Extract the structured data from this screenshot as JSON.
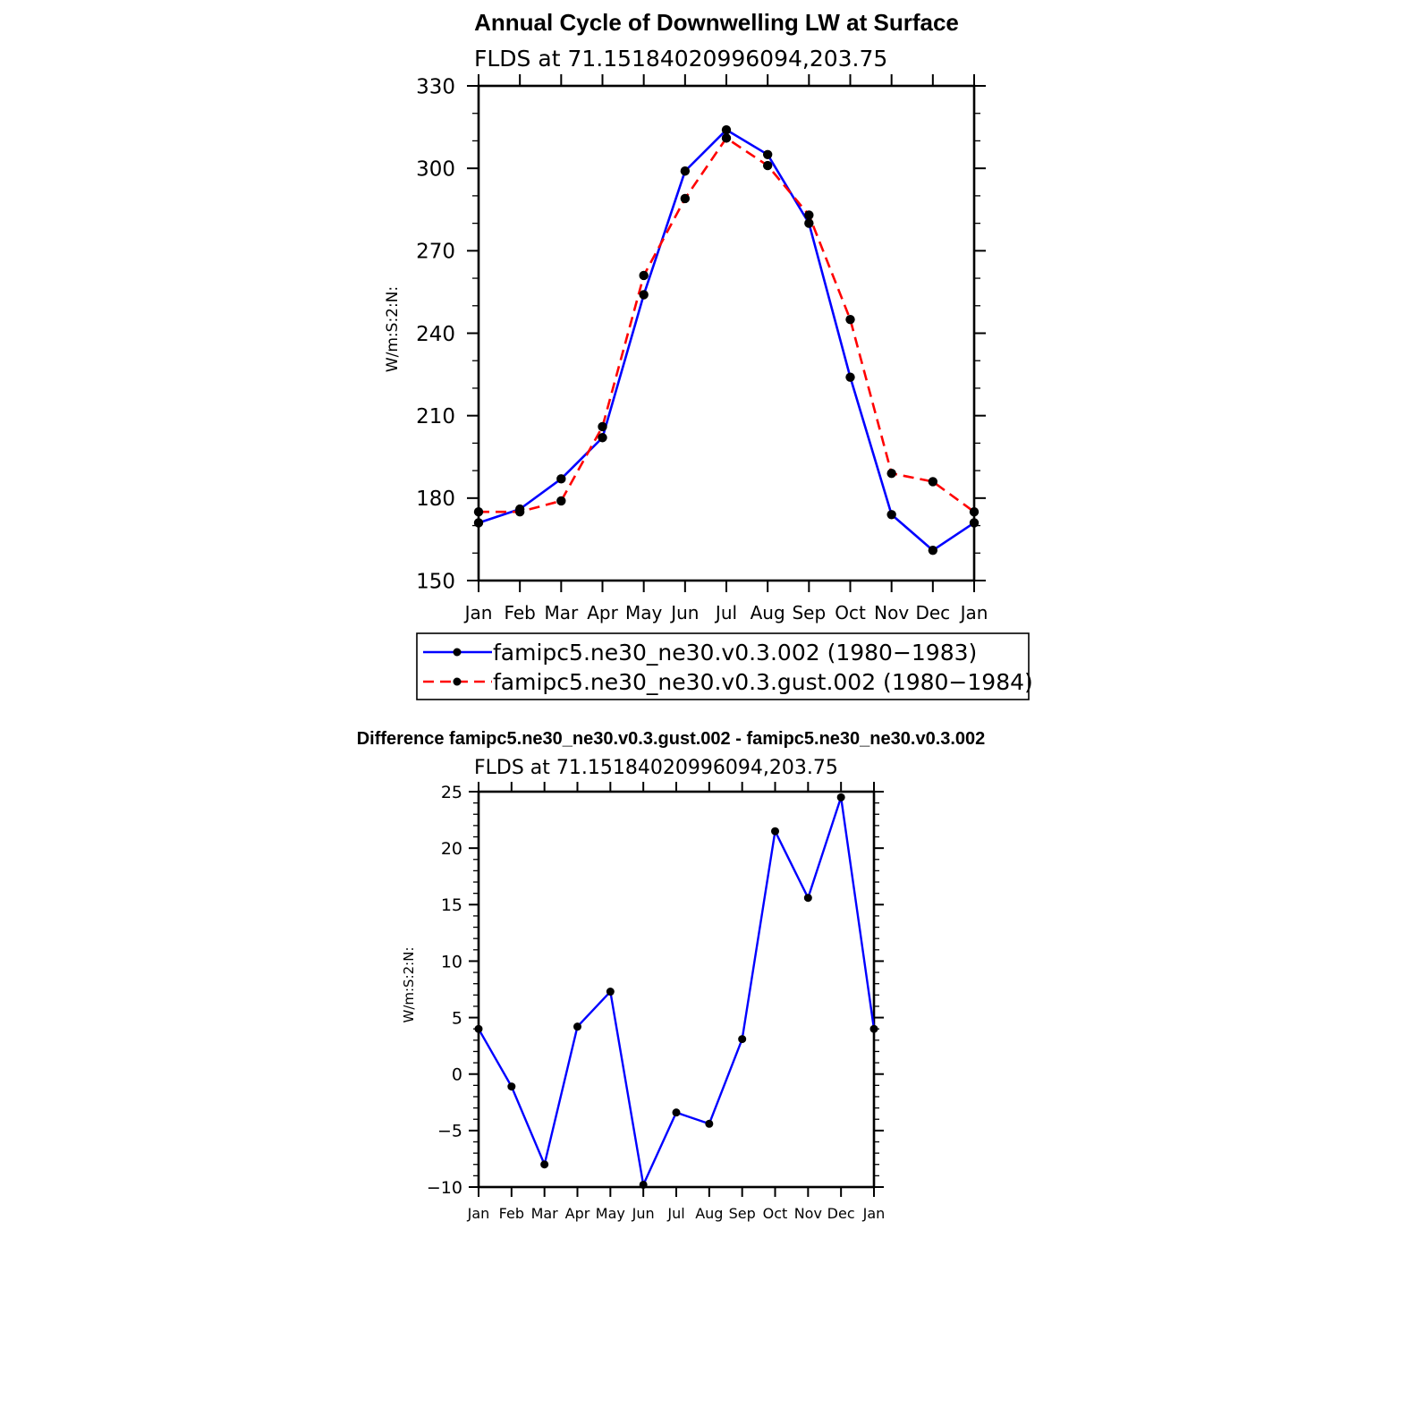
{
  "colors": {
    "series_1": "#0000ff",
    "series_2": "#ff0000",
    "marker": "#000000"
  },
  "chart_data": [
    {
      "type": "line",
      "title": "Annual Cycle of Downwelling LW at Surface",
      "subtitle": "FLDS at 71.15184020996094,203.75",
      "ylabel": "W/m:S:2:N:",
      "xlabel": "",
      "categories": [
        "Jan",
        "Feb",
        "Mar",
        "Apr",
        "May",
        "Jun",
        "Jul",
        "Aug",
        "Sep",
        "Oct",
        "Nov",
        "Dec",
        "Jan"
      ],
      "yticks": [
        "150",
        "180",
        "210",
        "240",
        "270",
        "300",
        "330"
      ],
      "ylim": [
        150,
        330
      ],
      "grid": false,
      "legend_position": "bottom",
      "series": [
        {
          "name": "famipc5.ne30_ne30.v0.3.002 (1980−1983)",
          "style": "solid",
          "values": [
            171,
            176,
            187,
            202,
            254,
            299,
            314,
            305,
            280,
            224,
            174,
            161,
            171
          ]
        },
        {
          "name": "famipc5.ne30_ne30.v0.3.gust.002 (1980−1984)",
          "style": "dashed",
          "values": [
            175,
            175,
            179,
            206,
            261,
            289,
            311,
            301,
            283,
            245,
            189,
            186,
            175
          ]
        }
      ]
    },
    {
      "type": "line",
      "title": "Difference famipc5.ne30_ne30.v0.3.gust.002 - famipc5.ne30_ne30.v0.3.002",
      "subtitle": "FLDS at 71.15184020996094,203.75",
      "ylabel": "W/m:S:2:N:",
      "xlabel": "",
      "categories": [
        "Jan",
        "Feb",
        "Mar",
        "Apr",
        "May",
        "Jun",
        "Jul",
        "Aug",
        "Sep",
        "Oct",
        "Nov",
        "Dec",
        "Jan"
      ],
      "yticks": [
        "−10",
        "−5",
        "0",
        "5",
        "10",
        "15",
        "20",
        "25"
      ],
      "ylim": [
        -10,
        25
      ],
      "grid": false,
      "series": [
        {
          "style": "solid",
          "values": [
            4.0,
            -1.1,
            -8.0,
            4.2,
            7.3,
            -9.8,
            -3.4,
            -4.4,
            3.1,
            21.5,
            15.6,
            24.5,
            4.0
          ]
        }
      ]
    }
  ]
}
